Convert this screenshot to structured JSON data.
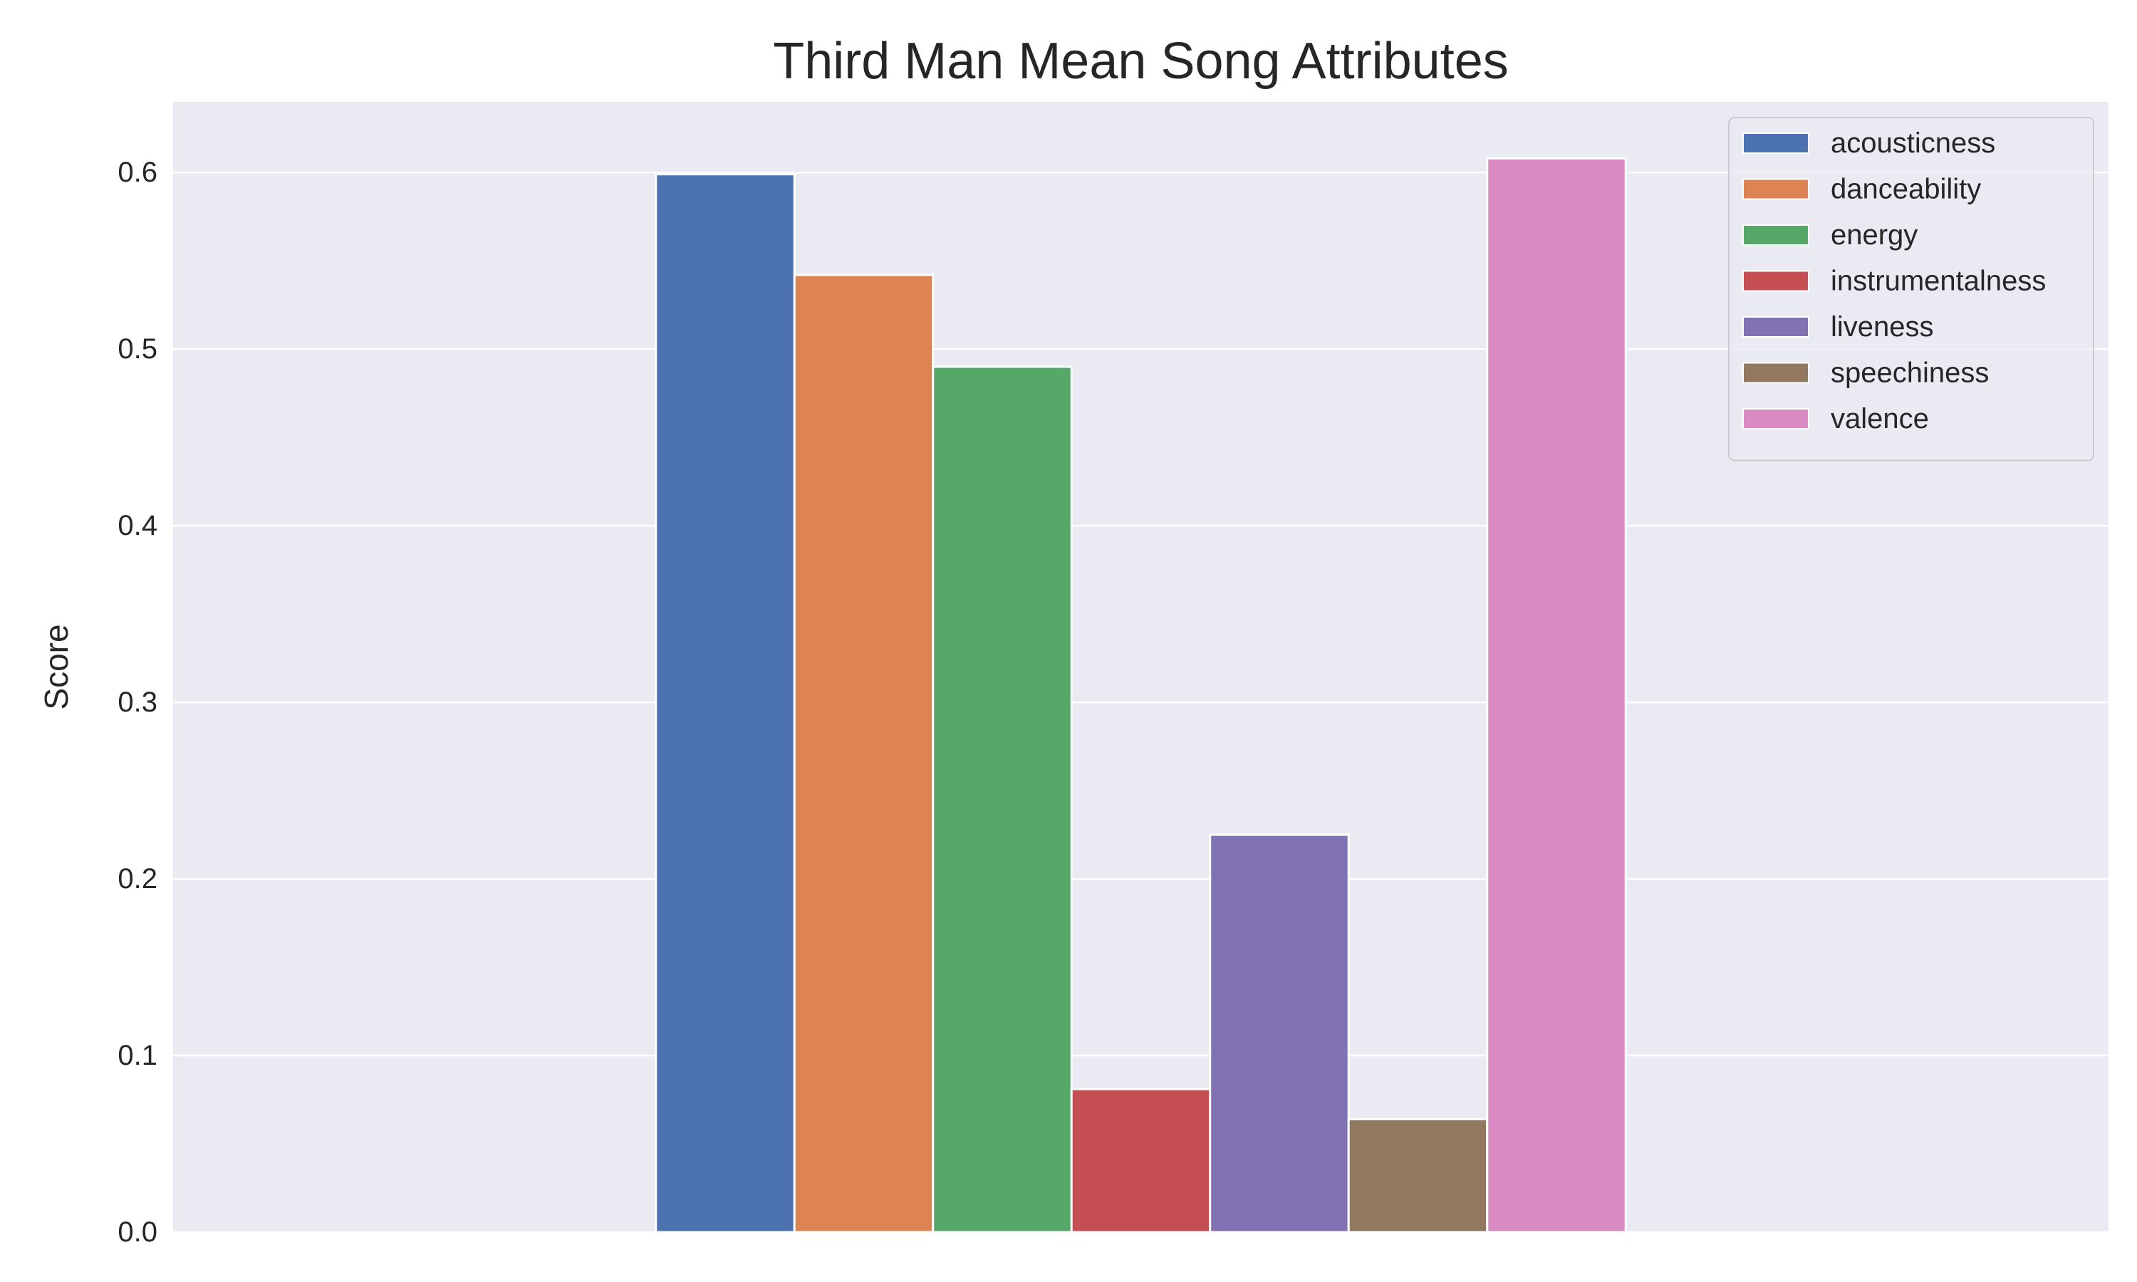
{
  "chart_data": {
    "type": "bar",
    "title": "Third Man Mean Song Attributes",
    "xlabel": "",
    "ylabel": "Score",
    "ylim": [
      0,
      0.64
    ],
    "yticks": [
      0.0,
      0.1,
      0.2,
      0.3,
      0.4,
      0.5,
      0.6
    ],
    "ytick_labels": [
      "0.0",
      "0.1",
      "0.2",
      "0.3",
      "0.4",
      "0.5",
      "0.6"
    ],
    "grid": true,
    "legend_position": "top-right",
    "background_color": "#eaeaf2",
    "series": [
      {
        "name": "acousticness",
        "value": 0.599,
        "color": "#4c72b0"
      },
      {
        "name": "danceability",
        "value": 0.542,
        "color": "#dd8452"
      },
      {
        "name": "energy",
        "value": 0.49,
        "color": "#55a868"
      },
      {
        "name": "instrumentalness",
        "value": 0.081,
        "color": "#c44e52"
      },
      {
        "name": "liveness",
        "value": 0.225,
        "color": "#8172b3"
      },
      {
        "name": "speechiness",
        "value": 0.064,
        "color": "#937860"
      },
      {
        "name": "valence",
        "value": 0.608,
        "color": "#da8bc3"
      }
    ]
  }
}
